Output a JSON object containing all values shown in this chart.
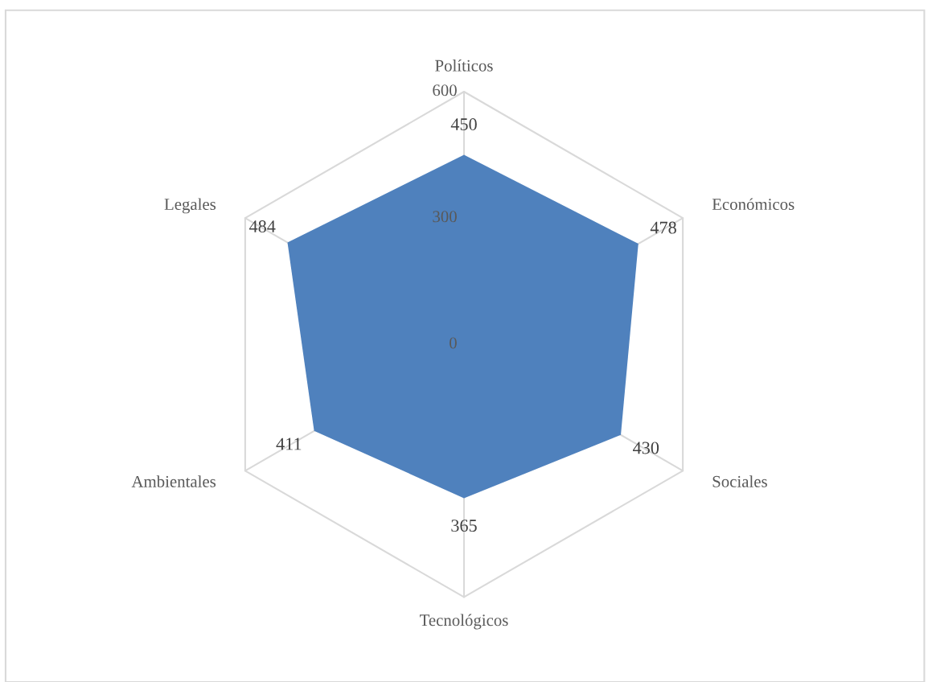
{
  "chart_data": {
    "type": "radar",
    "categories": [
      "Políticos",
      "Económicos",
      "Sociales",
      "Tecnológicos",
      "Ambientales",
      "Legales"
    ],
    "series": [
      {
        "color": "#4f81bd",
        "values": [
          450,
          478,
          430,
          365,
          411,
          484
        ]
      }
    ],
    "ylim": [
      0,
      600
    ],
    "yticks": [
      0,
      300,
      600
    ],
    "grid": true,
    "data_labels": true
  }
}
